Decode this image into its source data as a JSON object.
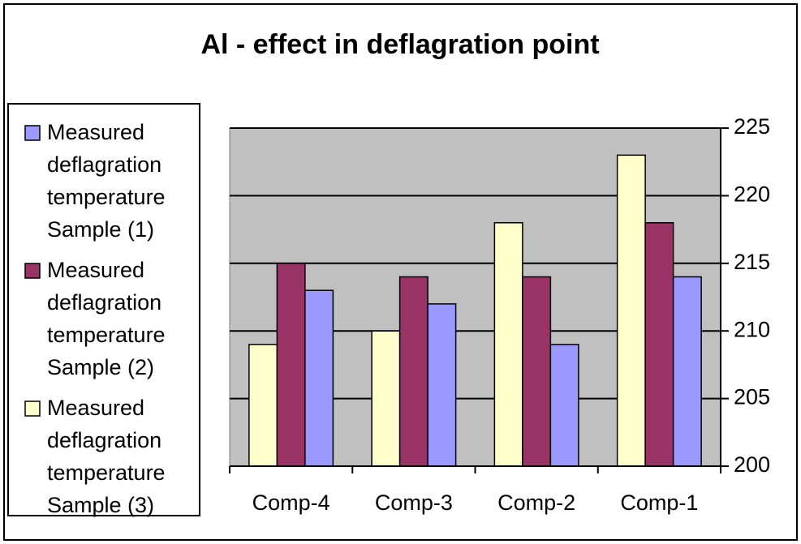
{
  "chart_data": {
    "type": "bar",
    "title": "Al - effect in deflagration point",
    "categories": [
      "Comp-4",
      "Comp-3",
      "Comp-2",
      "Comp-1"
    ],
    "series": [
      {
        "name": "Measured deflagration temperature Sample (1)",
        "color": "#9999ff",
        "values": [
          213,
          212,
          209,
          214
        ]
      },
      {
        "name": "Measured deflagration temperature Sample (2)",
        "color": "#993366",
        "values": [
          215,
          214,
          214,
          218
        ]
      },
      {
        "name": "Measured deflagration temperature Sample (3)",
        "color": "#ffffcc",
        "values": [
          209,
          210,
          218,
          223
        ]
      }
    ],
    "ylim": [
      200,
      225
    ],
    "yticks": [
      200,
      205,
      210,
      215,
      220,
      225
    ],
    "grid": true,
    "legend": "left",
    "yaxis_side": "right",
    "plot_background": "#c0c0c0"
  }
}
